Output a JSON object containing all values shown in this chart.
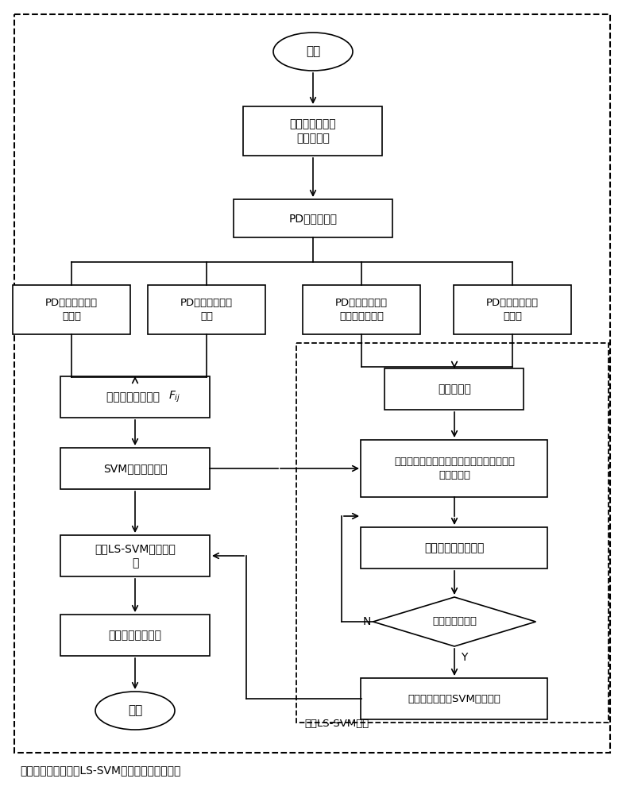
{
  "title": "基于组合逻辑与最优LS-SVM的局部放电方法流程",
  "nodes": {
    "start_label": "开始",
    "build_label": "建立不同局部放\n电类型模型",
    "pd_label": "PD源时域信号",
    "b1_label": "PD信号信息熵特\n征提取",
    "b2_label": "PD信号倍度特征\n提取",
    "b3_label": "PD信号高阶累积\n量特征参数计算",
    "b4_label": "PD信号奇异熵特\n征提取",
    "combine_label": "组合逻辑特征参数 ",
    "svm_opt_label": "SVM参数优化设计",
    "ls_svm_label": "最优LS-SVM分类器设\n计",
    "fault_label": "故障效果综合评价",
    "end_label": "结束",
    "init_label": "初始化设置",
    "fitness_label": "采用适应度函数作为判别标准，确定当前最\n优粒子参数",
    "update_label": "更新当前粒子群参数",
    "decision_label": "满足终止条件？",
    "train_label": "采用最优参数对SVM训练建模",
    "inner_label": "最优LS-SVM流程",
    "N_label": "N",
    "Y_label": "Y"
  }
}
